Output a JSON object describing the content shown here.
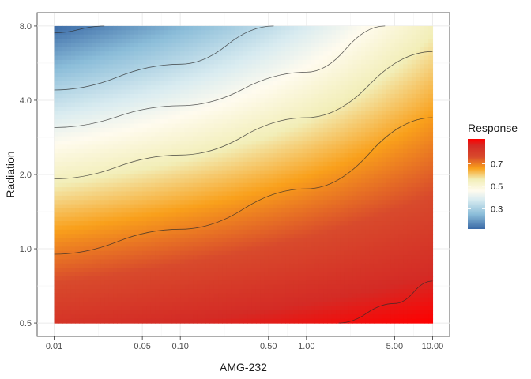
{
  "chart_data": {
    "type": "heatmap",
    "xlabel": "AMG-232",
    "ylabel": "Radiation",
    "x_scale": "log10",
    "y_scale": "log2",
    "xlim": [
      0.01,
      10
    ],
    "ylim": [
      0.5,
      8
    ],
    "x_ticks": [
      0.01,
      0.05,
      0.1,
      0.5,
      1,
      5,
      10
    ],
    "x_tick_labels": [
      "0.01",
      "0.05",
      "0.10",
      "0.50",
      "1.00",
      "5.00",
      "10.00"
    ],
    "y_ticks": [
      0.5,
      1,
      2,
      4,
      8
    ],
    "y_tick_labels": [
      "0.5",
      "1.0",
      "2.0",
      "4.0",
      "8.0"
    ],
    "grid": true,
    "response_surface": {
      "min_value": 0.12,
      "max_value": 0.92,
      "corners": {
        "x_0.01_y_8": 0.12,
        "x_10_y_8": 0.55,
        "x_0.01_y_0.5": 0.83,
        "x_10_y_0.5": 0.92
      }
    },
    "contours": [
      {
        "level": 0.2,
        "points": [
          [
            0.01,
            7.5
          ],
          [
            0.025,
            8.0
          ]
        ]
      },
      {
        "level": 0.3,
        "points": [
          [
            0.01,
            4.4
          ],
          [
            0.1,
            5.6
          ],
          [
            0.55,
            8.0
          ]
        ]
      },
      {
        "level": 0.5,
        "points": [
          [
            0.01,
            3.1
          ],
          [
            0.1,
            3.8
          ],
          [
            1,
            5.2
          ],
          [
            4.2,
            8.0
          ]
        ]
      },
      {
        "level": 0.6,
        "points": [
          [
            0.01,
            1.92
          ],
          [
            0.1,
            2.4
          ],
          [
            1,
            3.4
          ],
          [
            10,
            6.3
          ]
        ]
      },
      {
        "level": 0.7,
        "points": [
          [
            0.01,
            0.95
          ],
          [
            0.1,
            1.2
          ],
          [
            1,
            1.75
          ],
          [
            10,
            3.4
          ]
        ]
      },
      {
        "level": 0.9,
        "points": [
          [
            1.8,
            0.5
          ],
          [
            5,
            0.6
          ],
          [
            10,
            0.74
          ]
        ]
      }
    ],
    "legend": {
      "title": "Response",
      "position": "right",
      "breaks": [
        0.3,
        0.5,
        0.7
      ],
      "break_labels": [
        "0.3",
        "0.5",
        "0.7"
      ],
      "colorscale": [
        {
          "value": 0.12,
          "color": "#3b6aa6"
        },
        {
          "value": 0.25,
          "color": "#8bbdd9"
        },
        {
          "value": 0.38,
          "color": "#d8ebf0"
        },
        {
          "value": 0.46,
          "color": "#fffbee"
        },
        {
          "value": 0.56,
          "color": "#f2eeb8"
        },
        {
          "value": 0.66,
          "color": "#f9a01b"
        },
        {
          "value": 0.76,
          "color": "#d84a2c"
        },
        {
          "value": 0.86,
          "color": "#d42b25"
        },
        {
          "value": 0.92,
          "color": "#ff0000"
        }
      ]
    }
  }
}
